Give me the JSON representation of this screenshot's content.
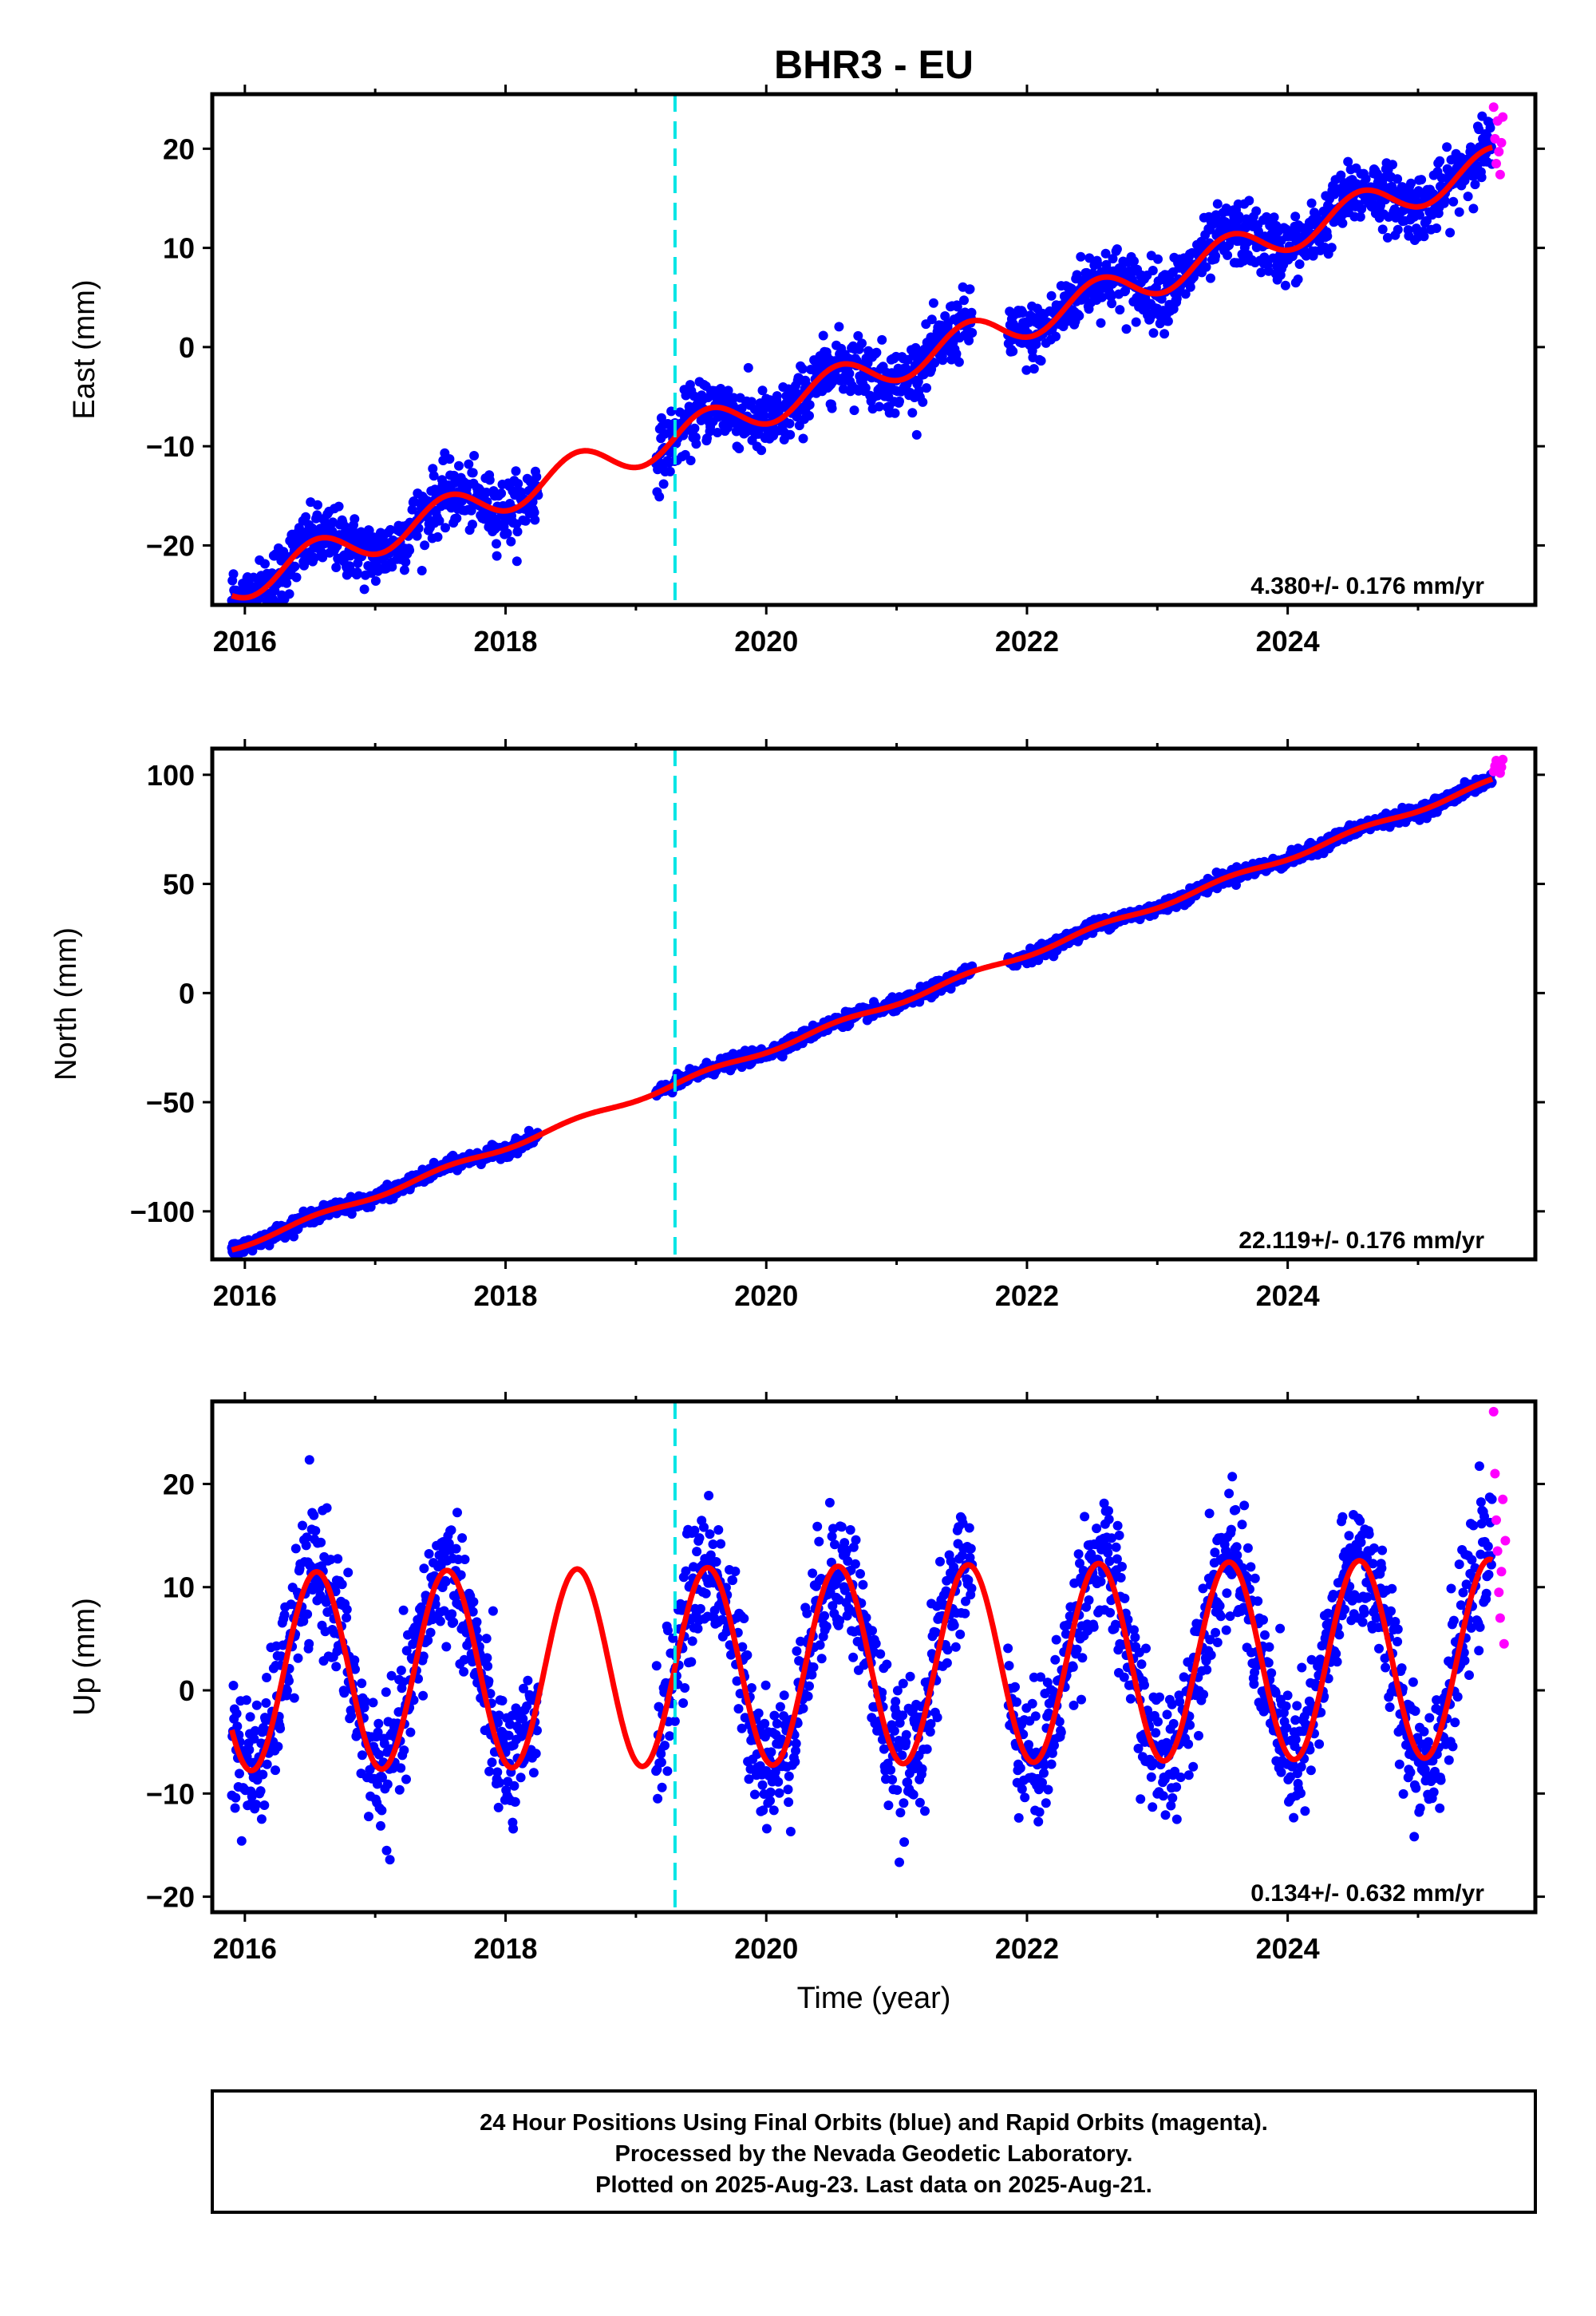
{
  "title": "BHR3 - EU",
  "colors": {
    "final_orbits": "#0000ff",
    "rapid_orbits": "#ff00ff",
    "model_fit": "#ff0000",
    "event_line": "#00e5e5"
  },
  "chart_data": [
    {
      "type": "scatter",
      "ylabel": "East (mm)",
      "xlabel": "",
      "xlim": [
        2015.75,
        2025.9
      ],
      "ylim": [
        -26,
        25.5
      ],
      "x_ticks": [
        2016,
        2018,
        2020,
        2022,
        2024
      ],
      "x_tick_labels": [
        "2016",
        "2018",
        "2020",
        "2022",
        "2024"
      ],
      "y_ticks": [
        -20,
        -10,
        0,
        10,
        20
      ],
      "y_tick_labels": [
        "−20",
        "−10",
        "0",
        "10",
        "20"
      ],
      "event_line_x": 2019.3,
      "rate_label": "4.380+/- 0.176 mm/yr",
      "model": {
        "rate": 4.38,
        "offset": -24.0,
        "t0": 2015.9,
        "annual_amp": 1.8,
        "annual_phase": 2016.3
      },
      "noise": 1.6,
      "rapid_points": [
        [
          2025.58,
          24.2
        ],
        [
          2025.59,
          21.0
        ],
        [
          2025.6,
          18.5
        ],
        [
          2025.61,
          22.8
        ],
        [
          2025.62,
          19.7
        ],
        [
          2025.63,
          17.4
        ],
        [
          2025.64,
          20.6
        ],
        [
          2025.65,
          23.2
        ]
      ]
    },
    {
      "type": "scatter",
      "ylabel": "North (mm)",
      "xlabel": "",
      "xlim": [
        2015.75,
        2025.9
      ],
      "ylim": [
        -122,
        112
      ],
      "x_ticks": [
        2016,
        2018,
        2020,
        2022,
        2024
      ],
      "x_tick_labels": [
        "2016",
        "2018",
        "2020",
        "2022",
        "2024"
      ],
      "y_ticks": [
        -100,
        -50,
        0,
        50,
        100
      ],
      "y_tick_labels": [
        "−100",
        "−50",
        "0",
        "50",
        "100"
      ],
      "event_line_x": 2019.3,
      "rate_label": "22.119+/- 0.176 mm/yr",
      "model": {
        "rate": 22.119,
        "offset": -117.0,
        "t0": 2015.9,
        "annual_amp": 1.2,
        "annual_phase": 2016.3
      },
      "noise": 1.5,
      "rapid_points": [
        [
          2025.58,
          101.5
        ],
        [
          2025.59,
          104.0
        ],
        [
          2025.6,
          106.5
        ],
        [
          2025.61,
          102.8
        ],
        [
          2025.62,
          105.2
        ],
        [
          2025.63,
          100.8
        ],
        [
          2025.64,
          103.5
        ],
        [
          2025.65,
          107.0
        ]
      ]
    },
    {
      "type": "scatter",
      "ylabel": "Up (mm)",
      "xlabel": "Time (year)",
      "xlim": [
        2015.75,
        2025.9
      ],
      "ylim": [
        -21.5,
        28
      ],
      "x_ticks": [
        2016,
        2018,
        2020,
        2022,
        2024
      ],
      "x_tick_labels": [
        "2016",
        "2018",
        "2020",
        "2022",
        "2024"
      ],
      "y_ticks": [
        -20,
        -10,
        0,
        10,
        20
      ],
      "y_tick_labels": [
        "−20",
        "−10",
        "0",
        "10",
        "20"
      ],
      "event_line_x": 2019.3,
      "rate_label": "0.134+/- 0.632 mm/yr",
      "model": {
        "rate": 0.134,
        "offset": 1.8,
        "t0": 2015.9,
        "annual_amp": 9.6,
        "annual_phase": 2016.3
      },
      "noise": 3.2,
      "rapid_points": [
        [
          2025.58,
          27.0
        ],
        [
          2025.59,
          21.0
        ],
        [
          2025.6,
          16.5
        ],
        [
          2025.61,
          13.5
        ],
        [
          2025.62,
          9.5
        ],
        [
          2025.63,
          7.0
        ],
        [
          2025.64,
          11.5
        ],
        [
          2025.65,
          18.5
        ],
        [
          2025.66,
          4.5
        ],
        [
          2025.67,
          14.5
        ]
      ]
    }
  ],
  "data_gaps": [
    [
      2018.25,
      2019.15
    ],
    [
      2021.58,
      2021.85
    ]
  ],
  "data_start": 2015.9,
  "data_end": 2025.57,
  "footer": {
    "line1": "24 Hour Positions Using Final Orbits (blue) and Rapid Orbits (magenta).",
    "line2": "Processed by the Nevada Geodetic Laboratory.",
    "line3": "Plotted on 2025-Aug-23. Last data on 2025-Aug-21."
  }
}
